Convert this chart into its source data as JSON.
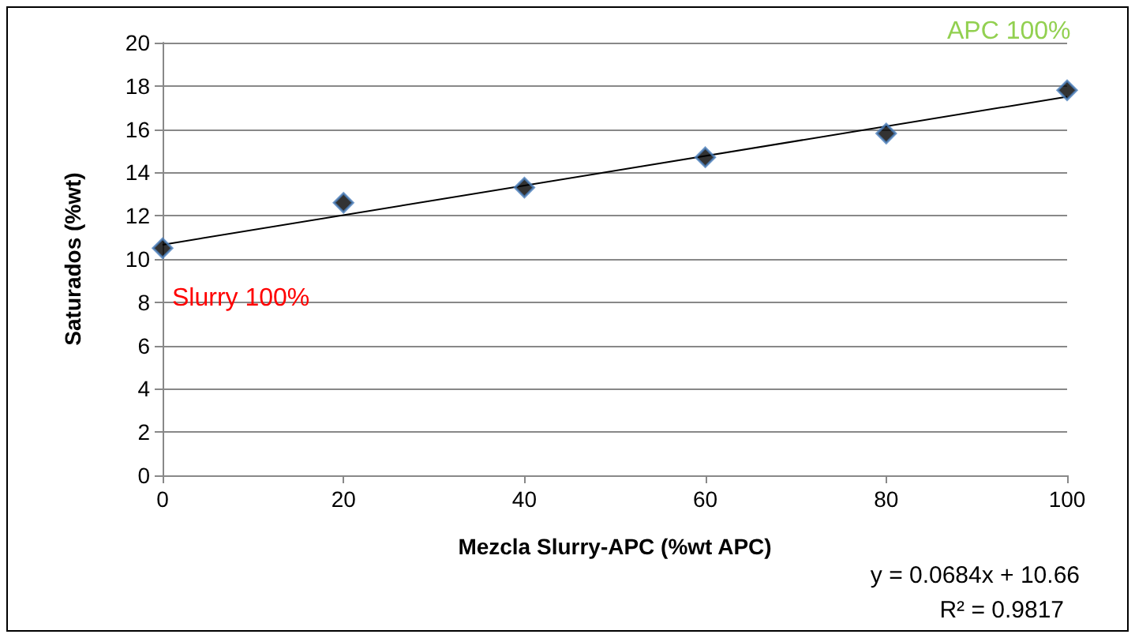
{
  "chart_data": {
    "type": "scatter",
    "xlabel": "Mezcla Slurry-APC (%wt APC)",
    "ylabel": "Saturados (%wt)",
    "x": [
      0,
      20,
      40,
      60,
      80,
      100
    ],
    "series": [
      {
        "color": "#000000",
        "values": [
          10.5,
          12.6,
          13.3,
          14.7,
          15.8,
          17.8
        ],
        "marker": "diamond"
      },
      {
        "type": "line",
        "color": "#000000",
        "x": [
          0,
          100
        ],
        "values": [
          10.66,
          17.5
        ],
        "marker": "none"
      }
    ],
    "xlim": [
      0,
      100
    ],
    "xticks": [
      0,
      20,
      40,
      60,
      80,
      100
    ],
    "ylim": [
      0,
      20
    ],
    "yticks": [
      0,
      2,
      4,
      6,
      8,
      10,
      12,
      14,
      16,
      18,
      20
    ],
    "grid": "y",
    "annotations": [
      {
        "text": "Slurry 100%",
        "x": 0,
        "y": 10.5
      },
      {
        "text": "APC 100%",
        "x": 100,
        "y": 17.8
      },
      "y = 0.0684x + 10.66",
      "R² = 0.9817"
    ]
  }
}
